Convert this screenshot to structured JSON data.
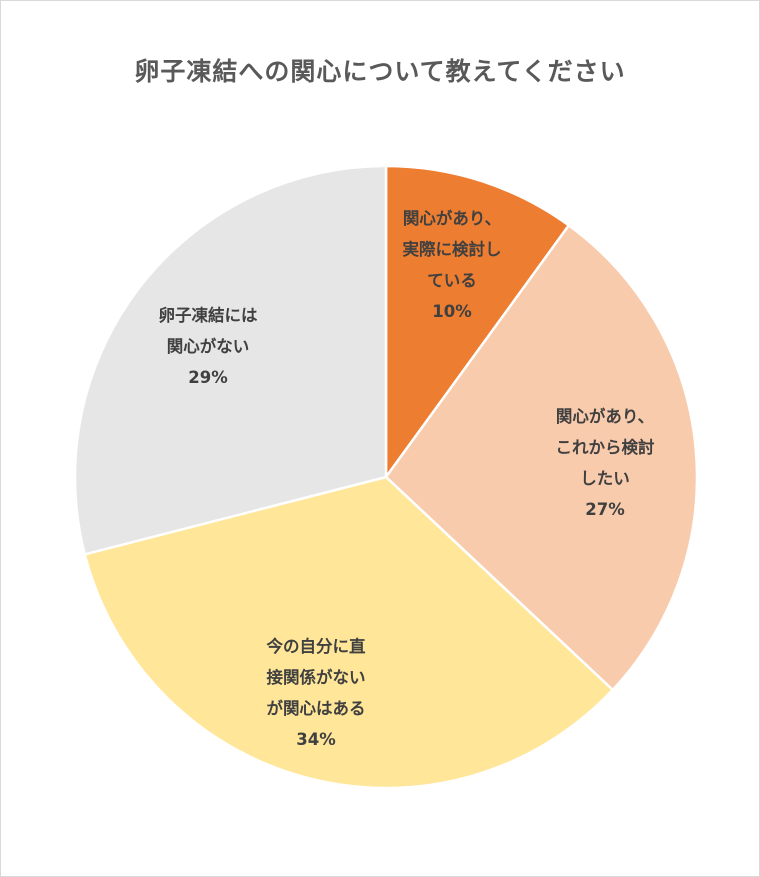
{
  "title": "卵子凍結への関心について教えてください",
  "chart_data": {
    "type": "pie",
    "title": "卵子凍結への関心について教えてください",
    "start": "12 o'clock",
    "direction": "clockwise",
    "slices": [
      {
        "label_lines": [
          "関心があり、",
          "実際に検討し",
          "ている"
        ],
        "value": 10,
        "value_label": "10%",
        "color": "#ED7D31"
      },
      {
        "label_lines": [
          "関心があり、",
          "これから検討",
          "したい"
        ],
        "value": 27,
        "value_label": "27%",
        "color": "#F8CBAD"
      },
      {
        "label_lines": [
          "今の自分に直",
          "接関係がない",
          "が関心はある"
        ],
        "value": 34,
        "value_label": "34%",
        "color": "#FFE699"
      },
      {
        "label_lines": [
          "卵子凍結には",
          "関心がない"
        ],
        "value": 29,
        "value_label": "29%",
        "color": "#E7E6E6"
      }
    ]
  }
}
